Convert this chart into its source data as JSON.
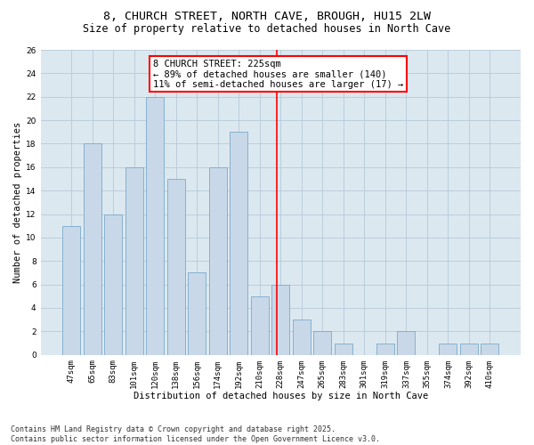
{
  "title1": "8, CHURCH STREET, NORTH CAVE, BROUGH, HU15 2LW",
  "title2": "Size of property relative to detached houses in North Cave",
  "xlabel": "Distribution of detached houses by size in North Cave",
  "ylabel": "Number of detached properties",
  "categories": [
    "47sqm",
    "65sqm",
    "83sqm",
    "101sqm",
    "120sqm",
    "138sqm",
    "156sqm",
    "174sqm",
    "192sqm",
    "210sqm",
    "228sqm",
    "247sqm",
    "265sqm",
    "283sqm",
    "301sqm",
    "319sqm",
    "337sqm",
    "355sqm",
    "374sqm",
    "392sqm",
    "410sqm"
  ],
  "values": [
    11,
    18,
    12,
    16,
    22,
    15,
    7,
    16,
    19,
    5,
    6,
    3,
    2,
    1,
    0,
    1,
    2,
    0,
    1,
    1,
    1
  ],
  "bar_color": "#c8d8e8",
  "bar_edge_color": "#7aaaca",
  "bar_width": 0.85,
  "vline_color": "red",
  "annotation_text": "8 CHURCH STREET: 225sqm\n← 89% of detached houses are smaller (140)\n11% of semi-detached houses are larger (17) →",
  "annotation_box_color": "red",
  "ylim": [
    0,
    26
  ],
  "yticks": [
    0,
    2,
    4,
    6,
    8,
    10,
    12,
    14,
    16,
    18,
    20,
    22,
    24,
    26
  ],
  "grid_color": "#b8c8d8",
  "background_color": "#dce8f0",
  "footer_line1": "Contains HM Land Registry data © Crown copyright and database right 2025.",
  "footer_line2": "Contains public sector information licensed under the Open Government Licence v3.0.",
  "title1_fontsize": 9.5,
  "title2_fontsize": 8.5,
  "xlabel_fontsize": 7.5,
  "ylabel_fontsize": 7.5,
  "tick_fontsize": 6.5,
  "footer_fontsize": 6,
  "annotation_fontsize": 7.5
}
